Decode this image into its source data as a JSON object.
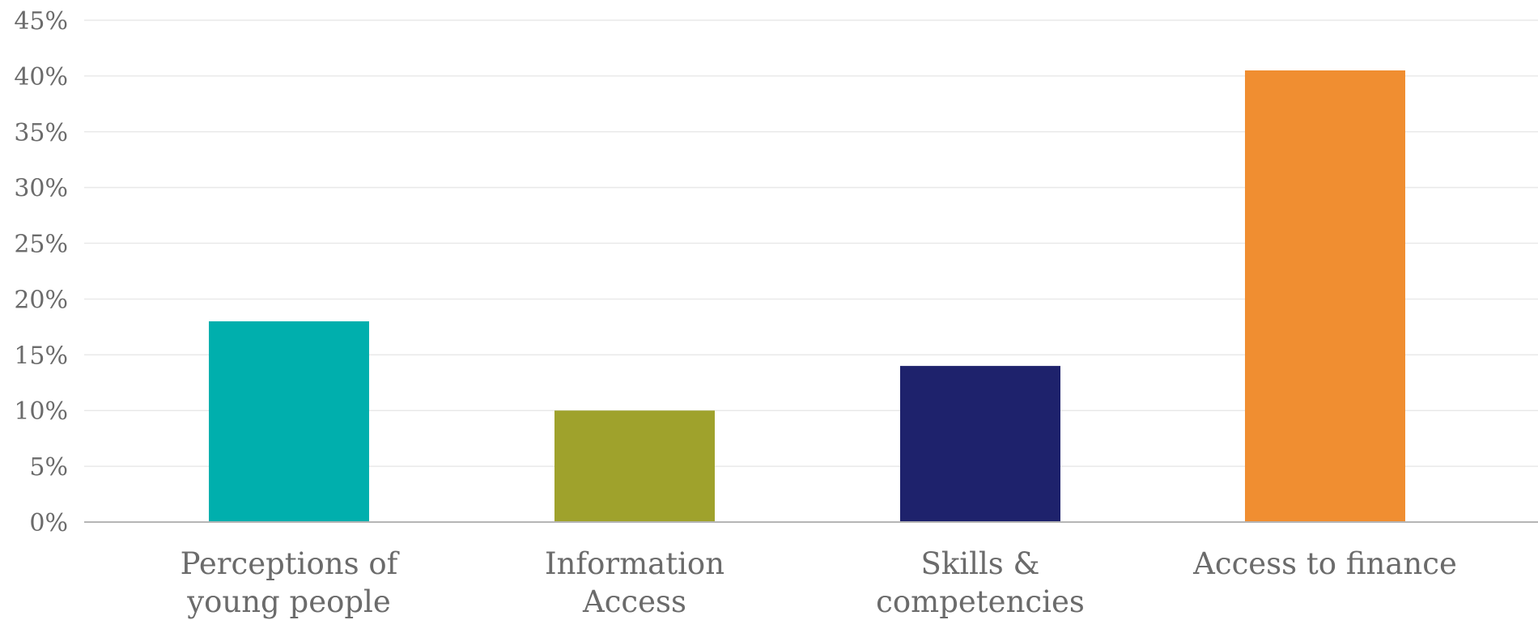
{
  "chart_data": {
    "type": "bar",
    "categories": [
      [
        "Perceptions of",
        "young people"
      ],
      [
        "Information",
        "Access"
      ],
      [
        "Skills &",
        "competencies"
      ],
      [
        "Access to finance"
      ]
    ],
    "values": [
      18,
      10,
      14,
      40.5
    ],
    "colors": [
      "#00AFAD",
      "#9FA22C",
      "#1E226C",
      "#F08E31"
    ],
    "ylim": [
      0,
      45
    ],
    "yticks": [
      0,
      5,
      10,
      15,
      20,
      25,
      30,
      35,
      40,
      45
    ],
    "ytick_labels": [
      "0%",
      "5%",
      "10%",
      "15%",
      "20%",
      "25%",
      "30%",
      "35%",
      "40%",
      "45%"
    ],
    "grid": true,
    "title": "",
    "xlabel": "",
    "ylabel": ""
  }
}
